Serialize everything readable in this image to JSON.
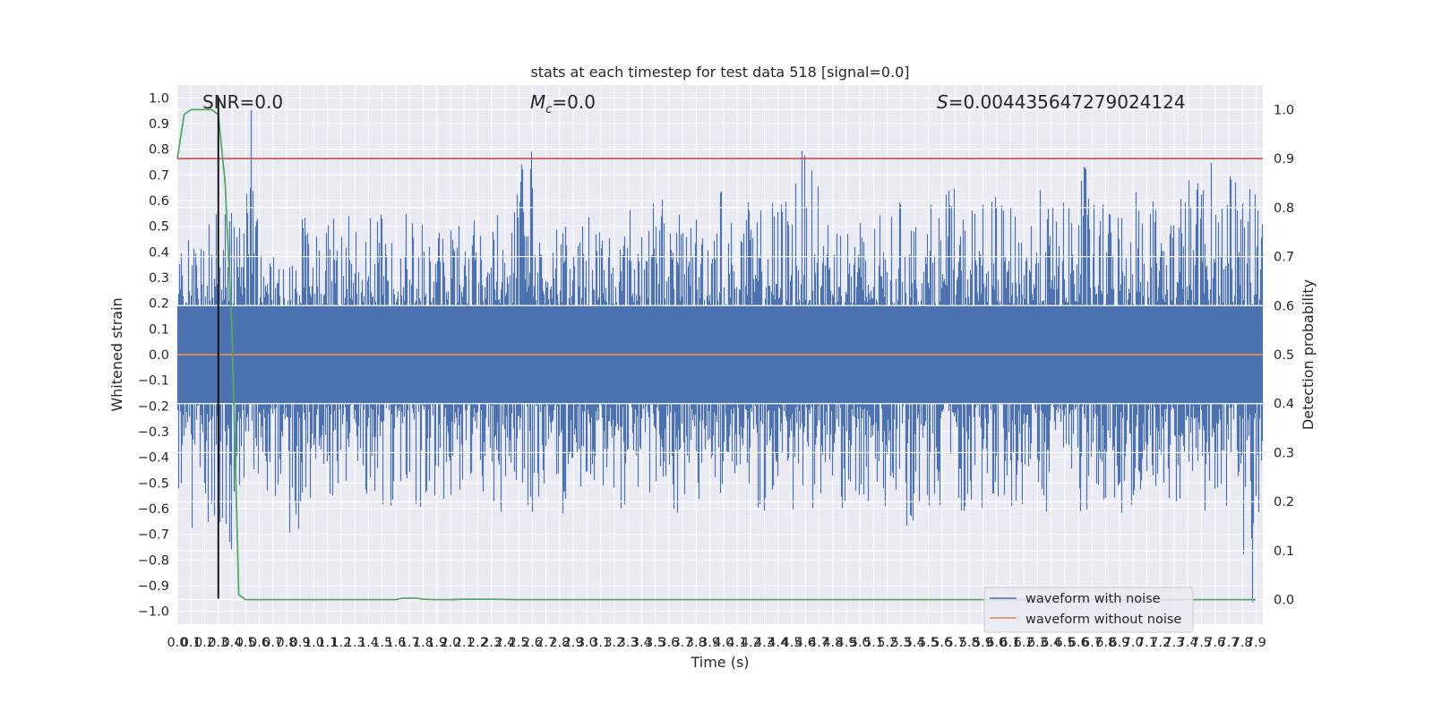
{
  "chart_data": {
    "type": "line",
    "title": "stats at each timestep for test data 518 [signal=0.0]",
    "xlabel": "Time (s)",
    "ylabel_left": "Whitened strain",
    "ylabel_right": "Detection probability",
    "xlim": [
      0.0,
      7.95
    ],
    "ylim_left": [
      -1.05,
      1.05
    ],
    "ylim_right": [
      -0.05,
      1.05
    ],
    "x_ticks": [
      "0.0",
      "0.1",
      "0.2",
      "0.3",
      "0.4",
      "0.5",
      "0.6",
      "0.7",
      "0.8",
      "0.9",
      "1.0",
      "1.1",
      "1.2",
      "1.3",
      "1.4",
      "1.5",
      "1.6",
      "1.7",
      "1.8",
      "1.9",
      "2.0",
      "2.1",
      "2.2",
      "2.3",
      "2.4",
      "2.5",
      "2.6",
      "2.7",
      "2.8",
      "2.9",
      "3.0",
      "3.1",
      "3.2",
      "3.3",
      "3.4",
      "3.5",
      "3.6",
      "3.7",
      "3.8",
      "3.9",
      "4.0",
      "4.1",
      "4.2",
      "4.3",
      "4.4",
      "4.5",
      "4.6",
      "4.7",
      "4.8",
      "4.9",
      "5.0",
      "5.1",
      "5.2",
      "5.3",
      "5.4",
      "5.5",
      "5.6",
      "5.7",
      "5.8",
      "5.9",
      "6.0",
      "6.1",
      "6.2",
      "6.3",
      "6.4",
      "6.5",
      "6.6",
      "6.7",
      "6.8",
      "6.9",
      "7.0",
      "7.1",
      "7.2",
      "7.3",
      "7.4",
      "7.5",
      "7.6",
      "7.7",
      "7.8",
      "7.9"
    ],
    "y_ticks_left": [
      "1.0",
      "0.9",
      "0.8",
      "0.7",
      "0.6",
      "0.5",
      "0.4",
      "0.3",
      "0.2",
      "0.1",
      "0.0",
      "−0.1",
      "−0.2",
      "−0.3",
      "−0.4",
      "−0.5",
      "−0.6",
      "−0.7",
      "−0.8",
      "−0.9",
      "−1.0"
    ],
    "y_ticks_right": [
      "1.0",
      "0.9",
      "0.8",
      "0.7",
      "0.6",
      "0.5",
      "0.4",
      "0.3",
      "0.2",
      "0.1",
      "0.0"
    ],
    "annotations": {
      "snr": "SNR=0.0",
      "mc_symbol": "M",
      "mc_sub": "c",
      "mc_value": "=0.0",
      "s_symbol": "S",
      "s_value": "=0.004435647279024124"
    },
    "series": [
      {
        "name": "waveform with noise",
        "color": "#4c72b0",
        "axis": "left",
        "description_values": {
          "approx_envelope_max": [
            0.5,
            0.42,
            0.6,
            0.6,
            0.55,
            1.0,
            0.6,
            0.4,
            0.45,
            0.55,
            0.5,
            0.55,
            0.6,
            0.62,
            0.55,
            0.5,
            0.62,
            0.55,
            0.45,
            0.52,
            0.55,
            0.58,
            0.52,
            0.62,
            0.72,
            0.8,
            0.6,
            0.55,
            0.52,
            0.55,
            0.58,
            0.55,
            0.52,
            0.6,
            0.62,
            0.65,
            0.55,
            0.58,
            0.6,
            0.7,
            0.55,
            0.6,
            0.58,
            0.62,
            0.65,
            0.82,
            0.72,
            0.62,
            0.58,
            0.55,
            0.52,
            0.55,
            0.6,
            0.62,
            0.55,
            0.6,
            0.65,
            0.58,
            0.62,
            0.62,
            0.6,
            0.58,
            0.62,
            0.65,
            0.6,
            0.7,
            0.78,
            0.6,
            0.62,
            0.68,
            0.72,
            0.65,
            0.62,
            0.7,
            0.72,
            0.78,
            0.7,
            0.9,
            0.72,
            0.58
          ],
          "approx_envelope_min": [
            -0.62,
            -0.7,
            -0.75,
            -0.85,
            -0.55,
            -0.52,
            -0.55,
            -0.58,
            -0.7,
            -0.62,
            -0.55,
            -0.6,
            -0.52,
            -0.55,
            -0.58,
            -0.6,
            -0.52,
            -0.62,
            -0.55,
            -0.58,
            -0.75,
            -0.55,
            -0.6,
            -0.62,
            -0.58,
            -0.72,
            -0.62,
            -0.55,
            -0.62,
            -0.58,
            -0.82,
            -0.68,
            -0.62,
            -0.6,
            -0.55,
            -0.58,
            -0.62,
            -0.6,
            -0.58,
            -0.62,
            -0.6,
            -0.58,
            -0.62,
            -0.6,
            -0.58,
            -0.72,
            -0.62,
            -0.58,
            -0.6,
            -0.58,
            -0.62,
            -0.6,
            -0.58,
            -0.78,
            -0.62,
            -0.6,
            -0.58,
            -0.62,
            -0.6,
            -0.58,
            -0.62,
            -0.6,
            -0.58,
            -0.62,
            -0.6,
            -0.58,
            -0.62,
            -0.6,
            -0.58,
            -0.62,
            -0.6,
            -0.58,
            -0.62,
            -0.6,
            -0.58,
            -0.62,
            -0.6,
            -0.58,
            -0.98,
            -0.62
          ]
        }
      },
      {
        "name": "waveform without noise",
        "color": "#dd8452",
        "axis": "left",
        "x": [
          0.0,
          7.95
        ],
        "y": [
          0.0,
          0.0
        ]
      },
      {
        "name": "",
        "color": "#55a868",
        "axis": "right",
        "x": [
          0.0,
          0.05,
          0.1,
          0.15,
          0.2,
          0.25,
          0.3,
          0.35,
          0.4,
          0.45,
          0.5,
          0.6,
          0.8,
          1.0,
          1.2,
          1.4,
          1.6,
          1.65,
          1.7,
          1.75,
          1.8,
          1.9,
          2.0,
          2.1,
          2.2,
          2.3,
          2.5,
          3.0,
          4.0,
          5.0,
          6.0,
          7.0,
          7.9
        ],
        "y": [
          0.9,
          0.99,
          1.0,
          1.0,
          1.0,
          1.0,
          0.99,
          0.85,
          0.55,
          0.01,
          0.0,
          0.0,
          0.0,
          0.0,
          0.0,
          0.0,
          0.0,
          0.003,
          0.003,
          0.003,
          0.001,
          0.0,
          0.0,
          0.001,
          0.001,
          0.001,
          0.0,
          0.0,
          0.0,
          0.0,
          0.0,
          0.0,
          0.0
        ]
      }
    ],
    "hlines": [
      {
        "axis": "right",
        "y": 0.9,
        "color": "#c44e52"
      }
    ],
    "vlines": [
      {
        "x": 0.3,
        "y_from": -0.95,
        "y_to": 1.0,
        "color": "#000000"
      }
    ],
    "legend": {
      "placement": "lower-right",
      "entries": [
        "waveform with noise",
        "waveform without noise"
      ]
    },
    "grid": true,
    "background": "#eaeaf2"
  }
}
